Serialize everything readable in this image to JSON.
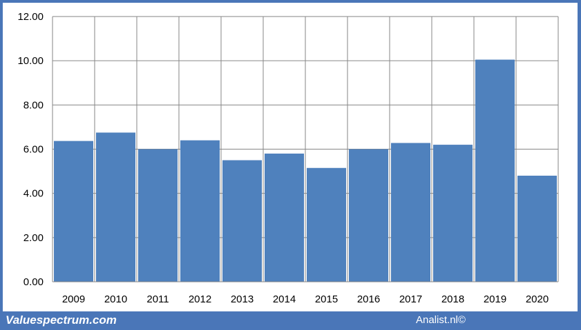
{
  "colors": {
    "frame": "#4a76b8",
    "bar": "#4f81bd",
    "grid": "#868686",
    "background": "#ffffff"
  },
  "footer": {
    "left_text": "Valuespectrum.com",
    "right_text": "Analist.nl©"
  },
  "chart_data": {
    "type": "bar",
    "title": "",
    "xlabel": "",
    "ylabel": "",
    "categories": [
      "2009",
      "2010",
      "2011",
      "2012",
      "2013",
      "2014",
      "2015",
      "2016",
      "2017",
      "2018",
      "2019",
      "2020"
    ],
    "values": [
      6.37,
      6.75,
      6.0,
      6.4,
      5.5,
      5.8,
      5.15,
      6.0,
      6.28,
      6.2,
      10.05,
      4.8
    ],
    "ylim": [
      0,
      12
    ],
    "yticks": [
      "0.00",
      "2.00",
      "4.00",
      "6.00",
      "8.00",
      "10.00",
      "12.00"
    ],
    "grid": true,
    "legend": "none"
  }
}
